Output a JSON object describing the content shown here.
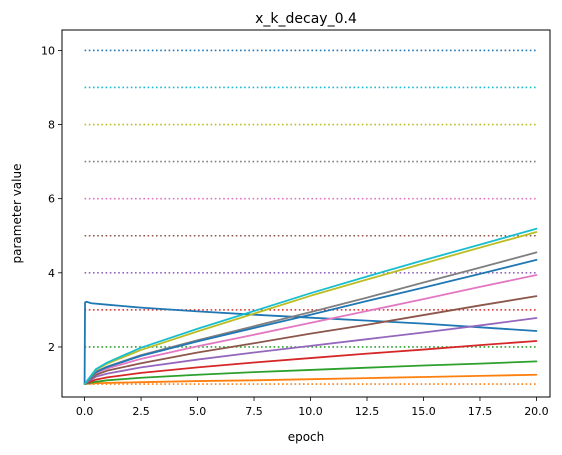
{
  "chart_data": {
    "type": "line",
    "title": "x_k_decay_0.4",
    "xlabel": "epoch",
    "ylabel": "parameter value",
    "xlim": [
      -1,
      20.6
    ],
    "ylim": [
      0.65,
      10.55
    ],
    "xticks": [
      0.0,
      2.5,
      5.0,
      7.5,
      10.0,
      12.5,
      15.0,
      17.5,
      20.0
    ],
    "xtick_labels": [
      "0.0",
      "2.5",
      "5.0",
      "7.5",
      "10.0",
      "12.5",
      "15.0",
      "17.5",
      "20.0"
    ],
    "yticks": [
      2,
      4,
      6,
      8,
      10
    ],
    "ytick_labels": [
      "2",
      "4",
      "6",
      "8",
      "10"
    ],
    "grid": false,
    "legend": "none",
    "reference_lines": [
      {
        "y": 1,
        "color": "#ff7f0e"
      },
      {
        "y": 2,
        "color": "#2ca02c"
      },
      {
        "y": 3,
        "color": "#d62728"
      },
      {
        "y": 4,
        "color": "#9467bd"
      },
      {
        "y": 5,
        "color": "#8c564b"
      },
      {
        "y": 6,
        "color": "#e377c2"
      },
      {
        "y": 7,
        "color": "#7f7f7f"
      },
      {
        "y": 8,
        "color": "#bcbd22"
      },
      {
        "y": 9,
        "color": "#17becf"
      },
      {
        "y": 10,
        "color": "#1f77b4"
      }
    ],
    "series": [
      {
        "color": "#1f77b4",
        "x": [
          0,
          0.02,
          0.08,
          0.3,
          1,
          2.5,
          5,
          7.5,
          10,
          12.5,
          15,
          17.5,
          20
        ],
        "y": [
          1.0,
          3.2,
          3.22,
          3.18,
          3.14,
          3.06,
          2.96,
          2.87,
          2.79,
          2.71,
          2.63,
          2.53,
          2.43
        ]
      },
      {
        "color": "#ff7f0e",
        "x": [
          0,
          0.5,
          1,
          2.5,
          5,
          7.5,
          10,
          12.5,
          15,
          17.5,
          20
        ],
        "y": [
          1.0,
          1.02,
          1.03,
          1.05,
          1.08,
          1.1,
          1.13,
          1.16,
          1.19,
          1.22,
          1.25
        ]
      },
      {
        "color": "#2ca02c",
        "x": [
          0,
          0.5,
          1,
          2.5,
          5,
          7.5,
          10,
          12.5,
          15,
          17.5,
          20
        ],
        "y": [
          1.0,
          1.06,
          1.1,
          1.17,
          1.25,
          1.32,
          1.38,
          1.44,
          1.5,
          1.55,
          1.61
        ]
      },
      {
        "color": "#d62728",
        "x": [
          0,
          0.5,
          1,
          2.5,
          5,
          7.5,
          10,
          12.5,
          15,
          17.5,
          20
        ],
        "y": [
          1.0,
          1.12,
          1.18,
          1.3,
          1.45,
          1.58,
          1.7,
          1.82,
          1.93,
          2.05,
          2.16
        ]
      },
      {
        "color": "#9467bd",
        "x": [
          0,
          0.5,
          1,
          2.5,
          5,
          7.5,
          10,
          12.5,
          15,
          17.5,
          20
        ],
        "y": [
          1.0,
          1.2,
          1.28,
          1.45,
          1.66,
          1.85,
          2.03,
          2.21,
          2.39,
          2.58,
          2.78
        ]
      },
      {
        "color": "#8c564b",
        "x": [
          0,
          0.5,
          1,
          2.5,
          5,
          7.5,
          10,
          12.5,
          15,
          17.5,
          20
        ],
        "y": [
          1.0,
          1.25,
          1.36,
          1.56,
          1.85,
          2.1,
          2.36,
          2.6,
          2.86,
          3.12,
          3.37
        ]
      },
      {
        "color": "#e377c2",
        "x": [
          0,
          0.5,
          1,
          2.5,
          5,
          7.5,
          10,
          12.5,
          15,
          17.5,
          20
        ],
        "y": [
          1.0,
          1.3,
          1.42,
          1.68,
          2.02,
          2.33,
          2.65,
          2.97,
          3.29,
          3.62,
          3.94
        ]
      },
      {
        "color": "#7f7f7f",
        "x": [
          0,
          0.5,
          1,
          2.5,
          5,
          7.5,
          10,
          12.5,
          15,
          17.5,
          20
        ],
        "y": [
          1.0,
          1.33,
          1.47,
          1.78,
          2.18,
          2.56,
          2.94,
          3.33,
          3.74,
          4.14,
          4.55
        ]
      },
      {
        "color": "#1f77b4",
        "x": [
          0,
          0.5,
          1,
          2.5,
          5,
          7.5,
          10,
          12.5,
          15,
          17.5,
          20
        ],
        "y": [
          1.0,
          1.32,
          1.46,
          1.76,
          2.15,
          2.51,
          2.87,
          3.24,
          3.6,
          3.97,
          4.35
        ]
      },
      {
        "color": "#bcbd22",
        "x": [
          0,
          0.5,
          1,
          2.5,
          5,
          7.5,
          10,
          12.5,
          15,
          17.5,
          20
        ],
        "y": [
          1.0,
          1.38,
          1.55,
          1.92,
          2.42,
          2.9,
          3.38,
          3.82,
          4.25,
          4.68,
          5.1
        ]
      },
      {
        "color": "#17becf",
        "x": [
          0,
          0.5,
          1,
          2.5,
          5,
          7.5,
          10,
          12.5,
          15,
          17.5,
          20
        ],
        "y": [
          1.0,
          1.4,
          1.58,
          1.98,
          2.49,
          2.97,
          3.45,
          3.9,
          4.34,
          4.76,
          5.19
        ]
      }
    ]
  }
}
